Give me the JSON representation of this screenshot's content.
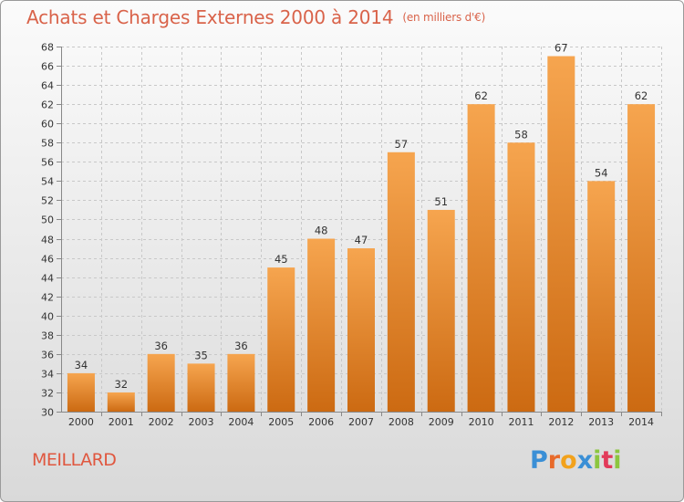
{
  "title": "Achats et Charges Externes 2000 à 2014",
  "subtitle": "(en milliers d'€)",
  "town": "MEILLARD",
  "logo": {
    "letters": [
      "P",
      "r",
      "o",
      "x",
      "i",
      "t",
      "i"
    ],
    "colors": [
      "#3a8fd6",
      "#e86a2a",
      "#f2a21c",
      "#3a8fd6",
      "#8cc63f",
      "#e23a5a",
      "#8cc63f"
    ]
  },
  "colors": {
    "bar_top": "#f6a54f",
    "bar_bottom": "#cc6a12",
    "title": "#d9634a",
    "grid": "#c8c8c8"
  },
  "chart_data": {
    "type": "bar",
    "title": "Achats et Charges Externes 2000 à 2014",
    "subtitle": "(en milliers d'€)",
    "xlabel": "",
    "ylabel": "",
    "categories": [
      "2000",
      "2001",
      "2002",
      "2003",
      "2004",
      "2005",
      "2006",
      "2007",
      "2008",
      "2009",
      "2010",
      "2011",
      "2012",
      "2013",
      "2014"
    ],
    "values": [
      34,
      32,
      36,
      35,
      36,
      45,
      48,
      47,
      57,
      51,
      62,
      58,
      67,
      54,
      62
    ],
    "ylim": [
      30,
      68
    ],
    "ytick_step": 2,
    "grid": true,
    "data_labels": true
  }
}
